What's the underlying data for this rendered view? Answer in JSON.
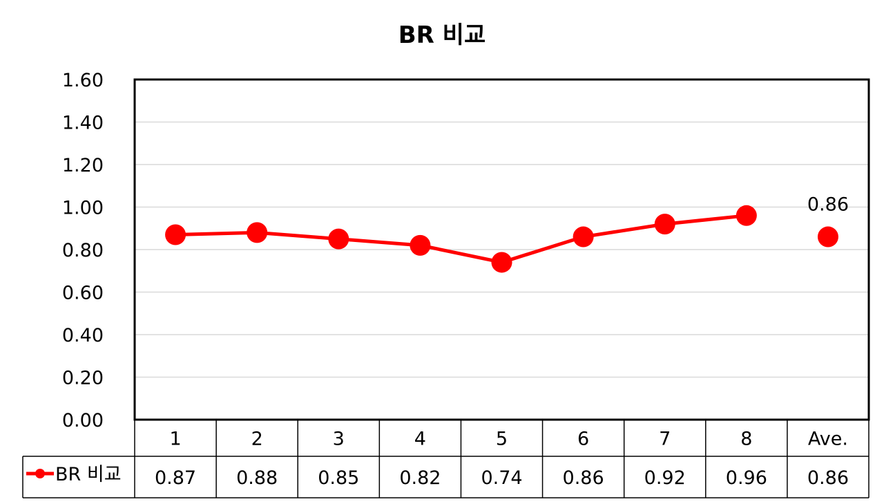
{
  "chart_data": {
    "type": "line",
    "title": "BR 비교",
    "categories": [
      "1",
      "2",
      "3",
      "4",
      "5",
      "6",
      "7",
      "8",
      "Ave."
    ],
    "series": [
      {
        "name": "BR 비교",
        "values": [
          0.87,
          0.88,
          0.85,
          0.82,
          0.74,
          0.86,
          0.92,
          0.96,
          0.86
        ],
        "data_labels": [
          "0.87",
          "0.88",
          "0.85",
          "0.82",
          "0.74",
          "0.86",
          "0.92",
          "0.96",
          "0.86"
        ],
        "color": "#ff0000"
      }
    ],
    "connected_points": 8,
    "annotations": [
      {
        "category": "Ave.",
        "text": "0.86"
      }
    ],
    "yticks": [
      "0.00",
      "0.20",
      "0.40",
      "0.60",
      "0.80",
      "1.00",
      "1.20",
      "1.40",
      "1.60"
    ],
    "ylim": [
      0,
      1.6
    ],
    "grid": true,
    "legend": "data-table",
    "xlabel": "",
    "ylabel": ""
  }
}
